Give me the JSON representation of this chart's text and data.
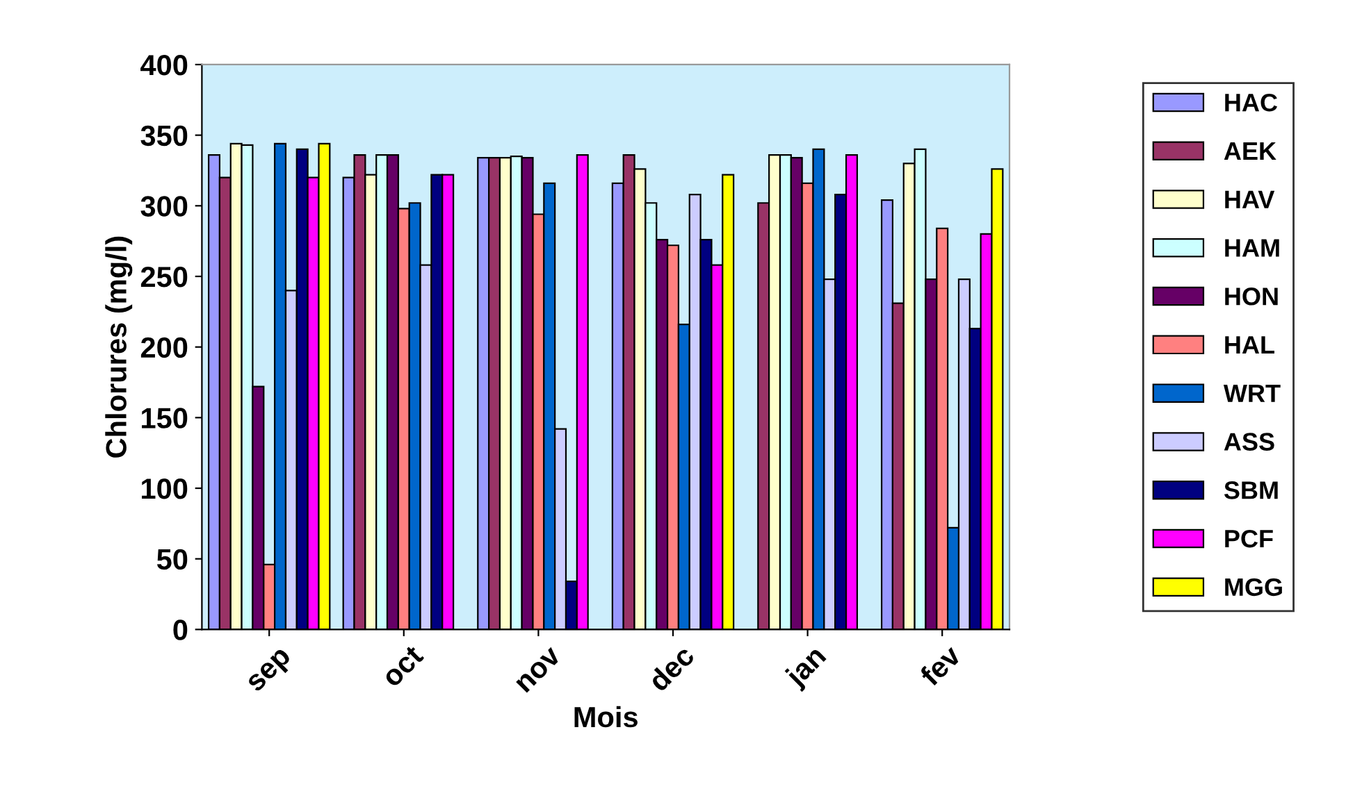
{
  "chart_data": {
    "type": "bar",
    "xlabel": "Mois",
    "ylabel": "Chlorures (mg/l)",
    "categories": [
      "sep",
      "oct",
      "nov",
      "dec",
      "jan",
      "fev"
    ],
    "ylim": [
      0,
      400
    ],
    "yticks": [
      0,
      50,
      100,
      150,
      200,
      250,
      300,
      350,
      400
    ],
    "grid": false,
    "legend": "right",
    "series": [
      {
        "name": "HAC",
        "color": "#9999ff",
        "values": [
          336,
          320,
          334,
          316,
          null,
          304
        ]
      },
      {
        "name": "AEK",
        "color": "#993366",
        "values": [
          320,
          336,
          334,
          336,
          302,
          231
        ]
      },
      {
        "name": "HAV",
        "color": "#ffffcc",
        "values": [
          344,
          322,
          334,
          326,
          336,
          330
        ]
      },
      {
        "name": "HAM",
        "color": "#ccffff",
        "values": [
          343,
          336,
          335,
          302,
          336,
          340
        ]
      },
      {
        "name": "HON",
        "color": "#660066",
        "values": [
          172,
          336,
          334,
          276,
          334,
          248
        ]
      },
      {
        "name": "HAL",
        "color": "#ff8080",
        "values": [
          46,
          298,
          294,
          272,
          316,
          284
        ]
      },
      {
        "name": "WRT",
        "color": "#0066cc",
        "values": [
          344,
          302,
          316,
          216,
          340,
          72
        ]
      },
      {
        "name": "ASS",
        "color": "#ccccff",
        "values": [
          240,
          258,
          142,
          308,
          248,
          248
        ]
      },
      {
        "name": "SBM",
        "color": "#000080",
        "values": [
          340,
          322,
          34,
          276,
          308,
          213
        ]
      },
      {
        "name": "PCF",
        "color": "#ff00ff",
        "values": [
          320,
          322,
          336,
          258,
          336,
          280
        ]
      },
      {
        "name": "MGG",
        "color": "#ffff00",
        "values": [
          344,
          null,
          null,
          322,
          null,
          326
        ]
      }
    ]
  }
}
